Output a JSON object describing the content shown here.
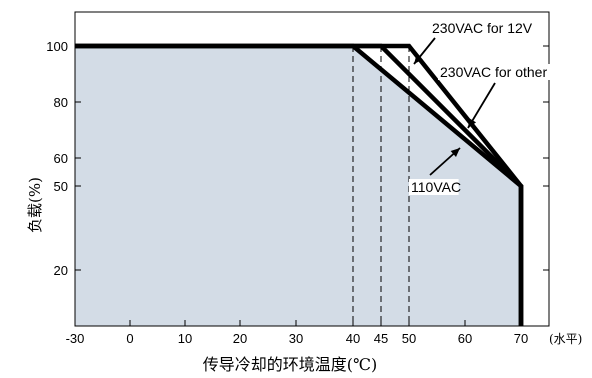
{
  "chart_data": {
    "type": "line",
    "xlabel": "传导冷却的环境温度(℃)",
    "ylabel": "负载(%)",
    "x_unit_note": "(水平)",
    "xlim": [
      -30,
      70
    ],
    "x_ticks": [
      -30,
      0,
      10,
      20,
      30,
      40,
      45,
      50,
      60,
      70
    ],
    "y_ticks": [
      100,
      80,
      60,
      50,
      20
    ],
    "grid": false,
    "series": [
      {
        "name": "110VAC",
        "x": [
          -30,
          40,
          70,
          70
        ],
        "y": [
          100,
          100,
          50,
          0
        ]
      },
      {
        "name": "230VAC for other",
        "x": [
          -30,
          45,
          70,
          70
        ],
        "y": [
          100,
          100,
          50,
          0
        ]
      },
      {
        "name": "230VAC for 12V",
        "x": [
          -30,
          50,
          70,
          70
        ],
        "y": [
          100,
          100,
          50,
          0
        ]
      }
    ],
    "reference_lines_x": [
      40,
      45,
      50
    ],
    "annotations": [
      "230VAC for 12V",
      "230VAC for other",
      "110VAC"
    ],
    "colors": {
      "fill": "#d3dce6",
      "line": "#000000"
    }
  }
}
